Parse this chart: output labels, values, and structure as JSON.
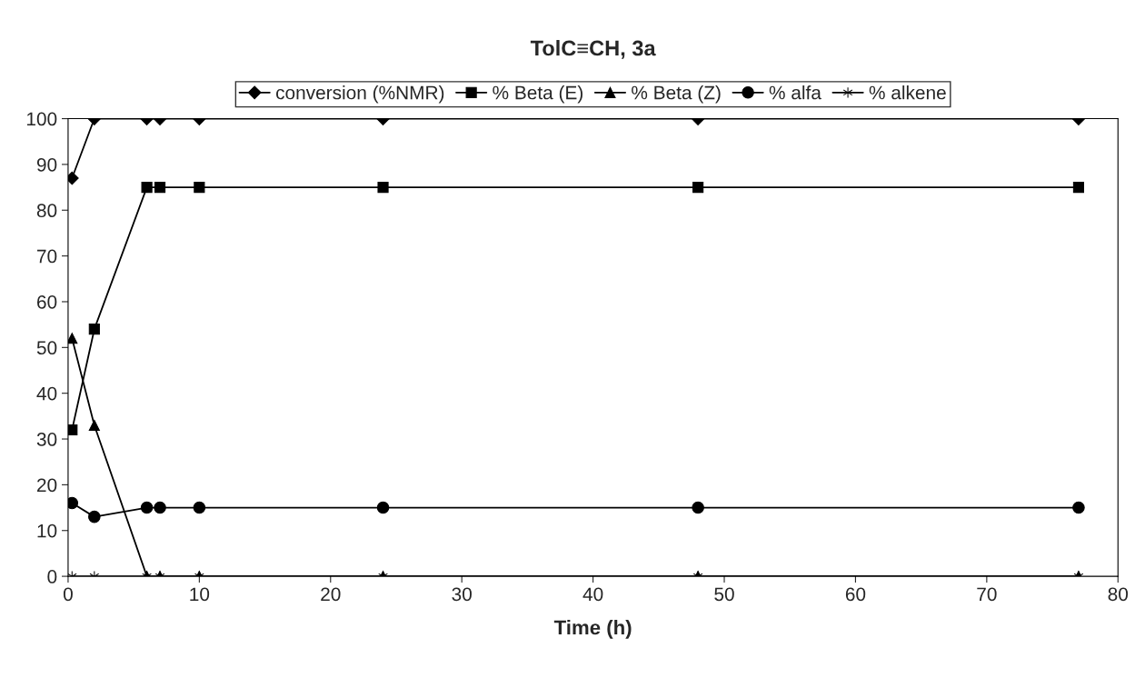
{
  "chart_data": {
    "type": "line",
    "title": "TolC≡CH, 3a",
    "xlabel": "Time (h)",
    "x": [
      0.3,
      2,
      6,
      7,
      10,
      24,
      48,
      77
    ],
    "series": [
      {
        "name": "conversion (%NMR)",
        "color": "#000000",
        "marker": "diamond",
        "values": [
          87,
          100,
          100,
          100,
          100,
          100,
          100,
          100
        ]
      },
      {
        "name": "% Beta (E)",
        "color": "#000000",
        "marker": "square",
        "values": [
          32,
          54,
          85,
          85,
          85,
          85,
          85,
          85
        ]
      },
      {
        "name": "% Beta (Z)",
        "color": "#000000",
        "marker": "triangle",
        "values": [
          52,
          33,
          0,
          0,
          0,
          0,
          0,
          0
        ]
      },
      {
        "name": "% alfa",
        "color": "#000000",
        "marker": "circle",
        "values": [
          16,
          13,
          15,
          15,
          15,
          15,
          15,
          15
        ]
      },
      {
        "name": "% alkene",
        "color": "#000000",
        "marker": "cross",
        "values": [
          0,
          0,
          0,
          0,
          0,
          0,
          0,
          0
        ]
      }
    ],
    "xlim": [
      0,
      80
    ],
    "xticks": [
      0,
      10,
      20,
      30,
      40,
      50,
      60,
      70,
      80
    ],
    "ylim": [
      0,
      100
    ],
    "yticks": [
      0,
      10,
      20,
      30,
      40,
      50,
      60,
      70,
      80,
      90,
      100
    ],
    "grid": false,
    "legend": "top",
    "line_style": "solid"
  }
}
